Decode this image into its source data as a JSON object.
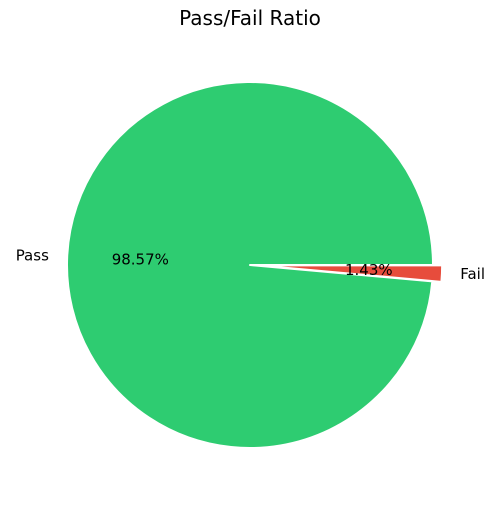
{
  "chart_data": {
    "type": "pie",
    "title": "Pass/Fail Ratio",
    "categories": [
      "Pass",
      "Fail"
    ],
    "values": [
      98.57,
      1.43
    ],
    "percent_labels": [
      "98.57%",
      "1.43%"
    ],
    "colors": [
      "#2ecc71",
      "#e74c3c"
    ],
    "explode": [
      0,
      0.05
    ],
    "start_angle_deg": 0,
    "direction": "counterclockwise"
  }
}
